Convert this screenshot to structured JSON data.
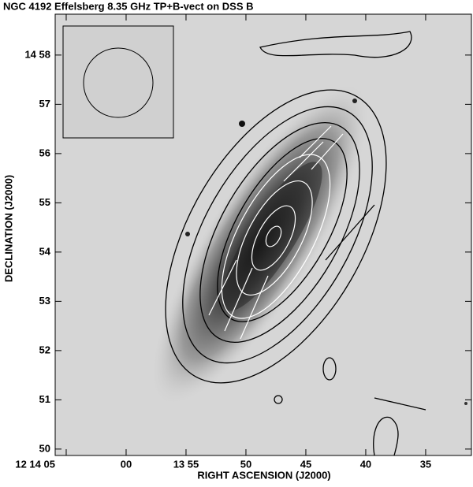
{
  "chart_data": {
    "type": "map",
    "title": "NGC 4192 Effelsberg 8.35 GHz TP+B-vect on DSS B",
    "xlabel": "RIGHT ASCENSION (J2000)",
    "ylabel": "DECLINATION (J2000)",
    "xlim": [
      65.92,
      31.18
    ],
    "xticks": [
      {
        "value": 65,
        "label": "12 14 05"
      },
      {
        "value": 60,
        "label": "00"
      },
      {
        "value": 55,
        "label": "13 55"
      },
      50,
      45,
      40,
      35
    ],
    "ylim": [
      49.87,
      58.83
    ],
    "yticks": [
      {
        "value": 58,
        "label": "14 58"
      },
      57,
      56,
      55,
      54,
      53,
      52,
      51,
      50
    ]
  }
}
